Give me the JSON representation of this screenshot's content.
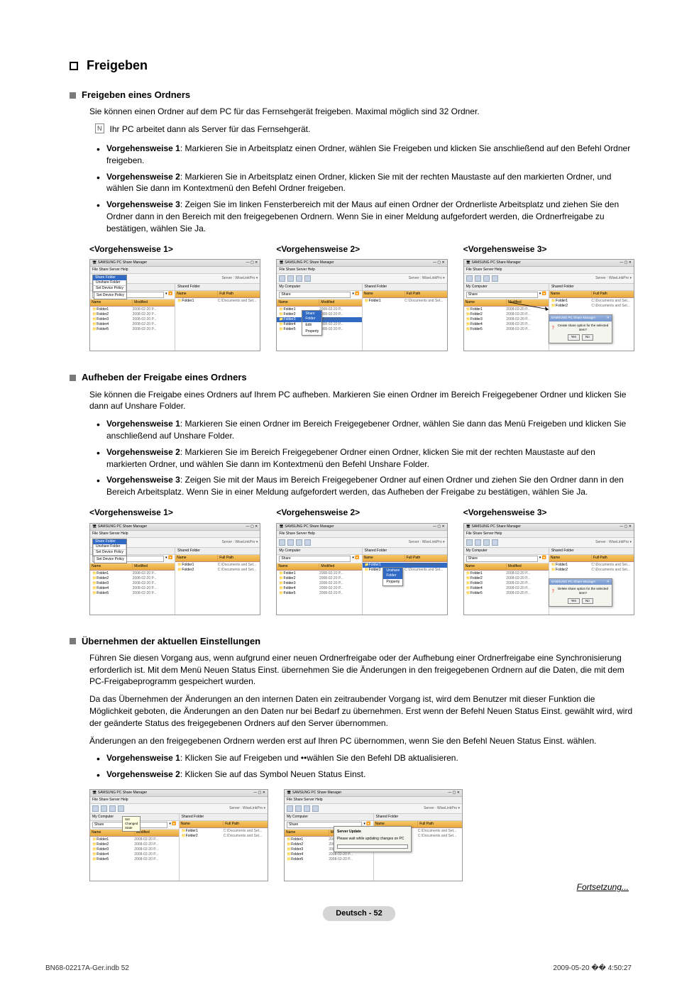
{
  "heading": "Freigeben",
  "section1": {
    "title": "Freigeben eines Ordners",
    "intro": "Sie können einen Ordner auf dem PC für das Fernsehgerät freigeben. Maximal möglich sind 32 Ordner.",
    "note": "Ihr PC arbeitet dann als Server für das Fernsehgerät.",
    "methods": [
      {
        "label": "Vorgehensweise 1",
        "text": ": Markieren Sie in Arbeitsplatz einen Ordner, wählen Sie Freigeben und klicken Sie anschließend auf den Befehl Ordner freigeben."
      },
      {
        "label": "Vorgehensweise 2",
        "text": ": Markieren Sie in Arbeitsplatz einen Ordner, klicken Sie mit der rechten Maustaste auf den markierten Ordner, und wählen Sie dann im Kontextmenü den Befehl Ordner freigeben."
      },
      {
        "label": "Vorgehensweise 3",
        "text": ": Zeigen Sie im linken Fensterbereich mit der Maus auf einen Ordner der Ordnerliste Arbeitsplatz und ziehen Sie den Ordner dann in den Bereich mit den freigegebenen Ordnern. Wenn Sie in einer Meldung aufgefordert werden, die Ordnerfreigabe zu bestätigen, wählen Sie Ja."
      }
    ],
    "shot_titles": [
      "<Vorgehensweise 1>",
      "<Vorgehensweise 2>",
      "<Vorgehensweise 3>"
    ]
  },
  "section2": {
    "title": "Aufheben der Freigabe eines Ordners",
    "intro": "Sie können die Freigabe eines Ordners auf Ihrem PC aufheben. Markieren Sie einen Ordner im Bereich Freigegebener Ordner und klicken Sie dann auf Unshare Folder.",
    "methods": [
      {
        "label": "Vorgehensweise 1",
        "text": ": Markieren Sie einen Ordner im Bereich Freigegebener Ordner, wählen Sie dann das Menü Freigeben und klicken Sie anschließend auf Unshare Folder."
      },
      {
        "label": "Vorgehensweise 2",
        "text": ": Markieren Sie im Bereich Freigegebener Ordner einen Ordner, klicken Sie mit der rechten Maustaste auf den markierten Ordner, und wählen Sie dann im Kontextmenü den Befehl Unshare Folder."
      },
      {
        "label": "Vorgehensweise 3",
        "text": ": Zeigen Sie mit der Maus im Bereich Freigegebener Ordner auf einen Ordner und ziehen Sie den Ordner dann in den Bereich Arbeitsplatz. Wenn Sie in einer Meldung aufgefordert werden, das Aufheben der Freigabe zu bestätigen, wählen Sie Ja."
      }
    ],
    "shot_titles": [
      "<Vorgehensweise 1>",
      "<Vorgehensweise 2>",
      "<Vorgehensweise 3>"
    ]
  },
  "section3": {
    "title": "Übernehmen der aktuellen Einstellungen",
    "p1": "Führen Sie diesen Vorgang aus, wenn aufgrund einer neuen Ordnerfreigabe oder der Aufhebung einer Ordnerfreigabe eine Synchronisierung erforderlich ist. Mit dem Menü Neuen Status Einst. übernehmen Sie die Änderungen in den freigegebenen Ordnern auf die Daten, die mit dem PC-Freigabeprogramm gespeichert wurden.",
    "p2": "Da das Übernehmen der Änderungen an den internen Daten ein zeitraubender Vorgang ist, wird dem Benutzer mit dieser Funktion die Möglichkeit geboten, die Änderungen an den Daten nur bei Bedarf zu übernehmen. Erst wenn der Befehl Neuen Status Einst. gewählt wird, wird der geänderte Status des freigegebenen Ordners auf den Server übernommen.",
    "p3": "Änderungen an den freigegebenen Ordnern werden erst auf Ihren PC übernommen, wenn Sie den Befehl Neuen Status Einst. wählen.",
    "methods": [
      {
        "label": "Vorgehensweise 1",
        "text": ": Klicken Sie auf Freigeben und ••wählen Sie den Befehl DB aktualisieren."
      },
      {
        "label": "Vorgehensweise 2",
        "text": ": Klicken Sie auf das Symbol Neuen Status Einst."
      }
    ]
  },
  "screenshot": {
    "app_title": "SAMSUNG PC Share Manager",
    "menus": "File   Share   Server   Help",
    "server_label": "Server :   WiseLinkPro  ▾",
    "left_header": "My Computer",
    "right_header": "Shared Folder",
    "share_label": "Share",
    "cols_left": [
      "Name",
      "Modified"
    ],
    "cols_right": [
      "Name",
      "Full Path"
    ],
    "folders": [
      "Folder1",
      "Folder2",
      "Folder3",
      "Folder4",
      "Folder5"
    ],
    "date": "2008-02-20 P...",
    "shared1": "Folder1",
    "shared_path": "C:\\Documents and Set...",
    "share_menu": {
      "open": "Share Folder",
      "items": [
        "Unshare Folder",
        "Set Device Policy"
      ]
    },
    "context_share": [
      "Share Folder",
      "Edit",
      "Property"
    ],
    "context_unshare": [
      "Unshare Folder",
      "Property"
    ],
    "dialog_title": "SAMSUNG PC Share Manager",
    "dialog_create": "Create share option for the selected item?",
    "dialog_delete": "Delete share option for the selected item?",
    "yes": "Yes",
    "no": "No",
    "refresh": "Refresh  DB",
    "set_policy": "Set Device Policy",
    "tooltip": "Set Changed State",
    "update_title": "Server Update",
    "update_msg": "Please wait while updating changes on PC"
  },
  "fort": "Fortsetzung...",
  "footer_page": "Deutsch - 52",
  "footer_left": "BN68-02217A-Ger.indb   52",
  "footer_right": "2009-05-20   �� 4:50:27",
  "colors": {
    "orange_header": "#e8a83a",
    "selection": "#316ac5"
  }
}
